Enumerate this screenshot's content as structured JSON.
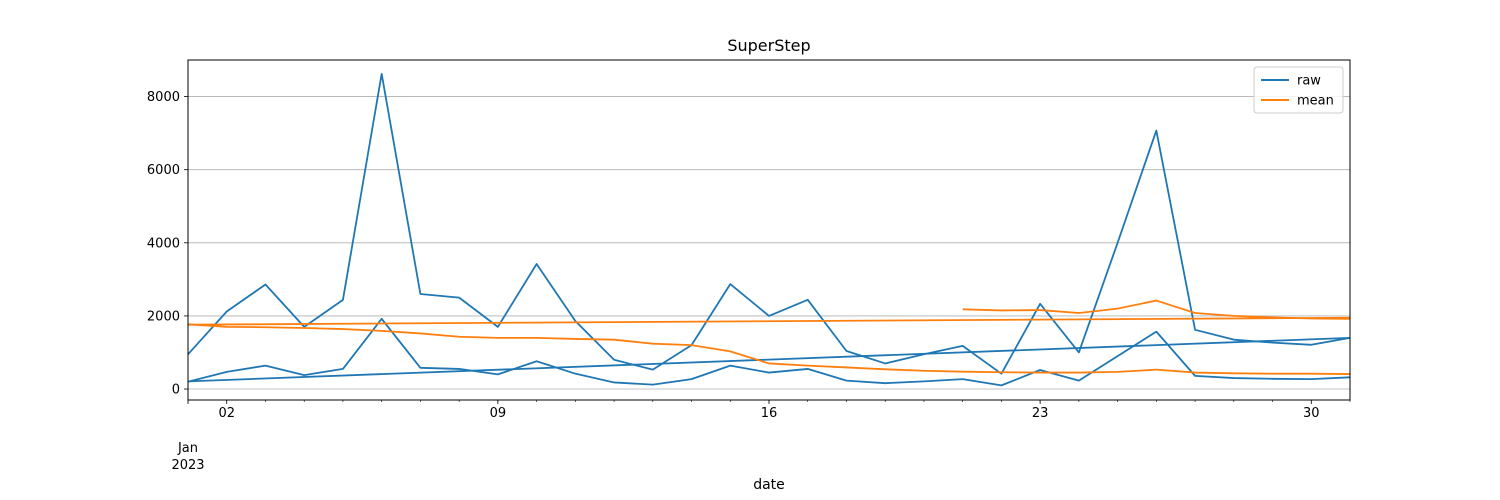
{
  "chart_data": {
    "type": "line",
    "title": "SuperStep",
    "xlabel": "date",
    "ylabel": "",
    "x_range": [
      "2023-01-01",
      "2023-01-31"
    ],
    "ylim": [
      -300,
      9000
    ],
    "grid": "y",
    "legend": "top-right",
    "x_ticks": [
      {
        "date": "2023-01-02",
        "label": "02"
      },
      {
        "date": "2023-01-09",
        "label": "09"
      },
      {
        "date": "2023-01-16",
        "label": "16"
      },
      {
        "date": "2023-01-23",
        "label": "23"
      },
      {
        "date": "2023-01-30",
        "label": "30"
      }
    ],
    "x_secondary_label": [
      "Jan",
      "2023"
    ],
    "y_ticks": [
      0,
      2000,
      4000,
      6000,
      8000
    ],
    "series": [
      {
        "name": "raw",
        "color": "#1f77b4",
        "segments": [
          {
            "x": [
              "2023-01-01",
              "2023-01-02",
              "2023-01-03",
              "2023-01-04",
              "2023-01-05",
              "2023-01-06",
              "2023-01-07",
              "2023-01-08",
              "2023-01-09",
              "2023-01-10",
              "2023-01-11",
              "2023-01-12",
              "2023-01-13",
              "2023-01-14",
              "2023-01-15",
              "2023-01-16",
              "2023-01-17",
              "2023-01-18",
              "2023-01-19",
              "2023-01-20",
              "2023-01-21",
              "2023-01-22",
              "2023-01-23",
              "2023-01-24",
              "2023-01-25",
              "2023-01-26",
              "2023-01-27",
              "2023-01-28",
              "2023-01-29",
              "2023-01-30",
              "2023-01-31"
            ],
            "y": [
              950,
              2120,
              2860,
              1700,
              2440,
              8620,
              2600,
              2500,
              1700,
              3420,
              1860,
              800,
              530,
              1200,
              2870,
              2000,
              2440,
              1040,
              700,
              950,
              1180,
              420,
              2330,
              1000,
              4000,
              7070,
              1620,
              1350,
              1270,
              1210,
              1400
            ]
          },
          {
            "x": [
              "2023-01-01",
              "2023-01-02",
              "2023-01-03",
              "2023-01-04",
              "2023-01-05",
              "2023-01-06",
              "2023-01-07",
              "2023-01-08",
              "2023-01-09",
              "2023-01-10",
              "2023-01-11",
              "2023-01-12",
              "2023-01-13",
              "2023-01-14",
              "2023-01-15",
              "2023-01-16",
              "2023-01-17",
              "2023-01-18",
              "2023-01-19",
              "2023-01-20",
              "2023-01-21",
              "2023-01-22",
              "2023-01-23",
              "2023-01-24",
              "2023-01-25",
              "2023-01-26",
              "2023-01-27",
              "2023-01-28",
              "2023-01-29",
              "2023-01-30",
              "2023-01-31"
            ],
            "y": [
              200,
              470,
              640,
              380,
              550,
              1920,
              580,
              550,
              400,
              760,
              420,
              180,
              120,
              270,
              640,
              450,
              550,
              230,
              160,
              210,
              270,
              100,
              520,
              230,
              900,
              1570,
              360,
              300,
              280,
              270,
              320
            ]
          },
          {
            "x": [
              "2023-01-01",
              "2023-01-31"
            ],
            "y": [
              210,
              1400
            ]
          }
        ]
      },
      {
        "name": "mean",
        "color": "#ff7f0e",
        "segments": [
          {
            "x": [
              "2023-01-01",
              "2023-01-02",
              "2023-01-03",
              "2023-01-04",
              "2023-01-05",
              "2023-01-06",
              "2023-01-07",
              "2023-01-08",
              "2023-01-09",
              "2023-01-10",
              "2023-01-11",
              "2023-01-12",
              "2023-01-13",
              "2023-01-14",
              "2023-01-15",
              "2023-01-16",
              "2023-01-17",
              "2023-01-18",
              "2023-01-19",
              "2023-01-20",
              "2023-01-21",
              "2023-01-22",
              "2023-01-23",
              "2023-01-24",
              "2023-01-25",
              "2023-01-26",
              "2023-01-27",
              "2023-01-28",
              "2023-01-29",
              "2023-01-30",
              "2023-01-31"
            ],
            "y": [
              1770,
              1700,
              1690,
              1670,
              1640,
              1590,
              1520,
              1430,
              1400,
              1400,
              1370,
              1350,
              1240,
              1200,
              1030,
              700,
              640,
              590,
              540,
              500,
              475,
              460,
              450,
              450,
              470,
              530,
              450,
              430,
              420,
              420,
              410
            ]
          },
          {
            "x": [
              "2023-01-01",
              "2023-01-31"
            ],
            "y": [
              1760,
              1950
            ]
          },
          {
            "x": [
              "2023-01-21",
              "2023-01-22",
              "2023-01-23",
              "2023-01-24",
              "2023-01-25",
              "2023-01-26",
              "2023-01-27",
              "2023-01-28",
              "2023-01-29",
              "2023-01-30",
              "2023-01-31"
            ],
            "y": [
              2180,
              2150,
              2160,
              2080,
              2200,
              2420,
              2080,
              2000,
              1960,
              1930,
              1920
            ]
          }
        ]
      }
    ]
  }
}
